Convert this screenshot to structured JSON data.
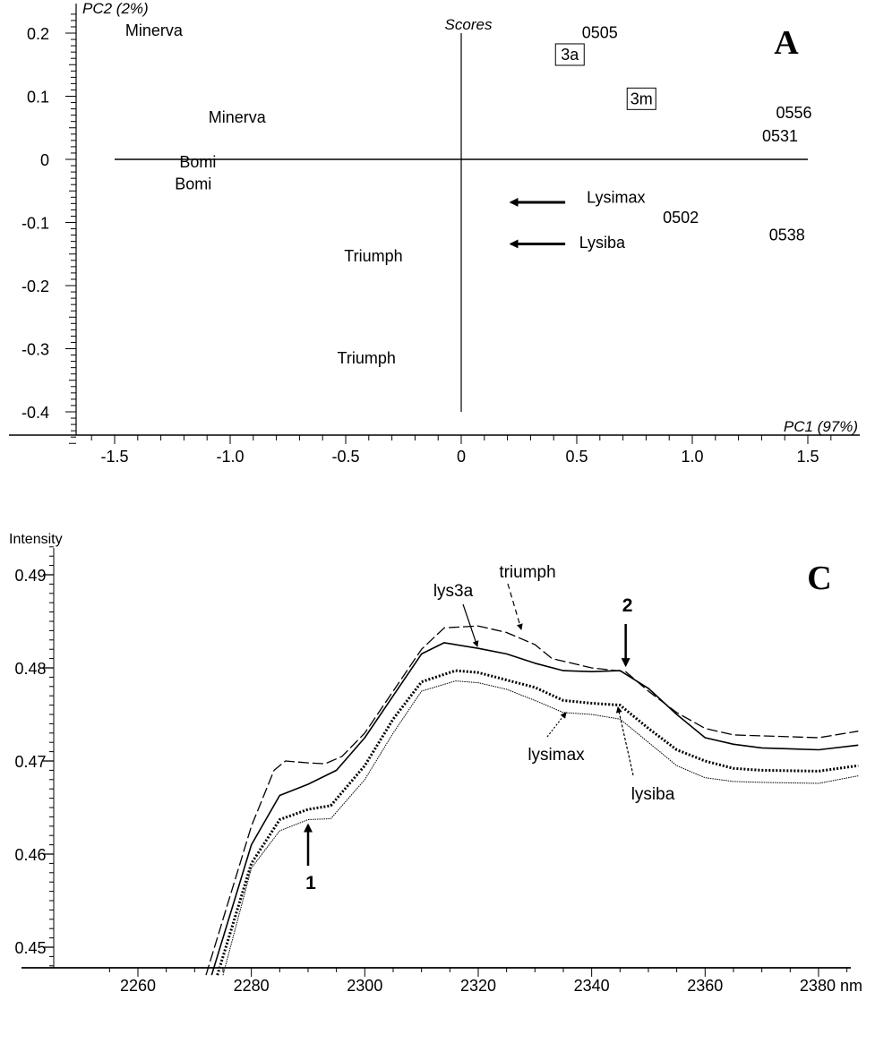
{
  "chart_data": [
    {
      "type": "scatter",
      "panel_letter": "A",
      "title": "Scores",
      "xlabel": "PC1 (97%)",
      "ylabel": "PC2 (2%)",
      "xlim": [
        -1.65,
        1.65
      ],
      "ylim": [
        -0.44,
        0.24
      ],
      "xticks": [
        -1.5,
        -1.0,
        -0.5,
        0,
        0.5,
        1.0,
        1.5
      ],
      "xtick_labels": [
        "-1.5",
        "-1.0",
        "-0.5",
        "0",
        "0.5",
        "1.0",
        "1.5"
      ],
      "yticks": [
        0.2,
        0.1,
        0,
        -0.1,
        -0.2,
        -0.3,
        -0.4
      ],
      "ytick_labels": [
        "0.2",
        "0.1",
        "0",
        "-0.1",
        "-0.2",
        "-0.3",
        "-0.4"
      ],
      "points": [
        {
          "label": "Minerva",
          "x": -1.33,
          "y": 0.21,
          "boxed": false
        },
        {
          "label": "Minerva",
          "x": -0.97,
          "y": 0.067,
          "boxed": false
        },
        {
          "label": "Bomi",
          "x": -1.14,
          "y": -0.007,
          "boxed": false
        },
        {
          "label": "Bomi",
          "x": -1.16,
          "y": -0.035,
          "boxed": false
        },
        {
          "label": "Triumph",
          "x": -0.38,
          "y": -0.153,
          "boxed": false
        },
        {
          "label": "Triumph",
          "x": -0.41,
          "y": -0.315,
          "boxed": false
        },
        {
          "label": "0505",
          "x": 0.6,
          "y": 0.201,
          "boxed": false
        },
        {
          "label": "3a",
          "x": 0.47,
          "y": 0.166,
          "boxed": true
        },
        {
          "label": "3m",
          "x": 0.78,
          "y": 0.096,
          "boxed": true
        },
        {
          "label": "0556",
          "x": 1.44,
          "y": 0.074,
          "boxed": false
        },
        {
          "label": "0531",
          "x": 1.38,
          "y": 0.037,
          "boxed": false
        },
        {
          "label": "Lysimax",
          "x": 0.67,
          "y": -0.06,
          "boxed": false
        },
        {
          "label": "0502",
          "x": 0.95,
          "y": -0.092,
          "boxed": false
        },
        {
          "label": "0538",
          "x": 1.41,
          "y": -0.12,
          "boxed": false
        },
        {
          "label": "Lysiba",
          "x": 0.61,
          "y": -0.132,
          "boxed": false
        }
      ],
      "arrows": [
        {
          "from": [
            0.45,
            -0.068
          ],
          "to": [
            0.2,
            -0.068
          ]
        },
        {
          "from": [
            0.45,
            -0.134
          ],
          "to": [
            0.2,
            -0.134
          ]
        }
      ]
    },
    {
      "type": "line",
      "panel_letter": "C",
      "xlabel": "nm",
      "ylabel": "Intensity",
      "xlim": [
        2250,
        2387
      ],
      "ylim": [
        0.4478,
        0.4935
      ],
      "xticks": [
        2260,
        2280,
        2300,
        2320,
        2340,
        2360,
        2380
      ],
      "xtick_labels": [
        "2260",
        "2280",
        "2300",
        "2320",
        "2340",
        "2360",
        "2380 nm"
      ],
      "yticks": [
        0.49,
        0.48,
        0.47,
        0.46,
        0.45
      ],
      "ytick_labels": [
        "0.49",
        "0.48",
        "0.47",
        "0.46",
        "0.45"
      ],
      "series": [
        {
          "name": "triumph",
          "style": "dashed",
          "x": [
            2272,
            2280,
            2284,
            2286,
            2290,
            2293,
            2296,
            2300,
            2305,
            2310,
            2314,
            2320,
            2325,
            2330,
            2333,
            2340,
            2346,
            2350,
            2355,
            2360,
            2365,
            2370,
            2380,
            2387
          ],
          "y": [
            0.447,
            0.463,
            0.469,
            0.47,
            0.4698,
            0.4697,
            0.4705,
            0.473,
            0.4775,
            0.482,
            0.4843,
            0.4845,
            0.4838,
            0.4825,
            0.481,
            0.48,
            0.4796,
            0.4775,
            0.4752,
            0.4735,
            0.4728,
            0.4727,
            0.4725,
            0.4732
          ]
        },
        {
          "name": "lys3a",
          "style": "solid",
          "x": [
            2273,
            2280,
            2285,
            2290,
            2295,
            2300,
            2305,
            2310,
            2314,
            2320,
            2325,
            2330,
            2335,
            2340,
            2345,
            2350,
            2355,
            2360,
            2365,
            2370,
            2380,
            2387
          ],
          "y": [
            0.447,
            0.461,
            0.4663,
            0.4675,
            0.469,
            0.4725,
            0.477,
            0.4815,
            0.4827,
            0.4821,
            0.4815,
            0.4805,
            0.4797,
            0.4796,
            0.4797,
            0.4778,
            0.475,
            0.4725,
            0.4718,
            0.4714,
            0.4712,
            0.4717
          ]
        },
        {
          "name": "lysiba",
          "style": "thick-dotted",
          "x": [
            2274,
            2280,
            2285,
            2290,
            2294,
            2300,
            2305,
            2310,
            2316,
            2320,
            2325,
            2330,
            2335,
            2340,
            2345,
            2350,
            2355,
            2360,
            2365,
            2370,
            2380,
            2387
          ],
          "y": [
            0.447,
            0.459,
            0.4637,
            0.4648,
            0.4652,
            0.4695,
            0.4745,
            0.4785,
            0.4797,
            0.4795,
            0.4787,
            0.4779,
            0.4765,
            0.4762,
            0.476,
            0.4735,
            0.4712,
            0.47,
            0.4692,
            0.469,
            0.4689,
            0.4695
          ]
        },
        {
          "name": "lysimax",
          "style": "thin-dotted",
          "x": [
            2275,
            2280,
            2285,
            2290,
            2294,
            2300,
            2305,
            2310,
            2316,
            2320,
            2325,
            2330,
            2335,
            2340,
            2345,
            2350,
            2355,
            2360,
            2365,
            2370,
            2380,
            2387
          ],
          "y": [
            0.447,
            0.4585,
            0.4625,
            0.4637,
            0.4638,
            0.468,
            0.473,
            0.4775,
            0.4786,
            0.4784,
            0.4777,
            0.4765,
            0.4752,
            0.475,
            0.4745,
            0.472,
            0.4695,
            0.4682,
            0.4678,
            0.4677,
            0.4676,
            0.4684
          ]
        }
      ],
      "annotations": [
        {
          "text": "1",
          "arrow_at": [
            2290,
            0.4635
          ],
          "direction": "up"
        },
        {
          "text": "2",
          "arrow_at": [
            2346,
            0.4797
          ],
          "direction": "down"
        }
      ]
    }
  ]
}
